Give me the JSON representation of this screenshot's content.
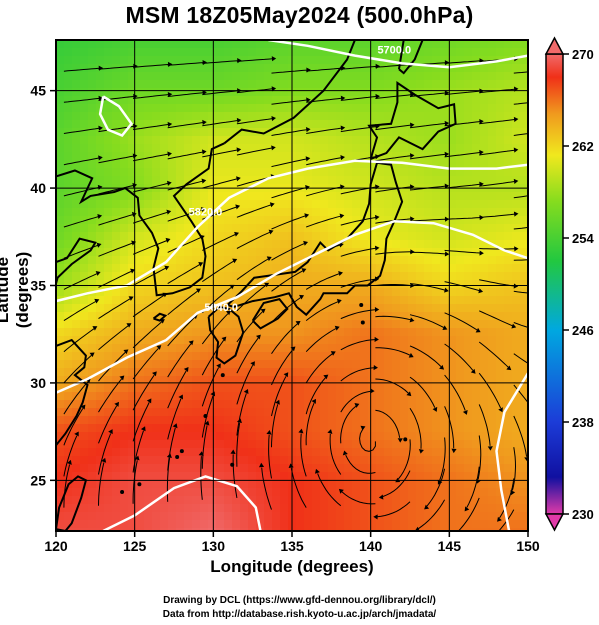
{
  "title": "MSM 18Z05May2024 (500.0hPa)",
  "axes": {
    "xlabel": "Longitude (degrees)",
    "ylabel": "Latitude  (degrees)",
    "x_ticks": [
      "120",
      "125",
      "130",
      "135",
      "140",
      "145",
      "150"
    ],
    "y_ticks": [
      "25",
      "30",
      "35",
      "40",
      "45"
    ],
    "x_range": [
      120,
      150
    ],
    "y_range": [
      22.4,
      47.6
    ]
  },
  "colorbar": {
    "min": 230,
    "max": 270,
    "ticks": [
      "270",
      "262",
      "254",
      "246",
      "238",
      "230"
    ],
    "colors": [
      "#e03aa8",
      "#1010a0",
      "#1c3cd8",
      "#00a8e0",
      "#22c840",
      "#86dc1e",
      "#f0e81e",
      "#f09a1e",
      "#f03018",
      "#f06a6a"
    ]
  },
  "contour_labels": [
    "5700.0",
    "5820.0",
    "5640.0"
  ],
  "credits": {
    "line1": "Drawing by DCL (https://www.gfd-dennou.org/library/dcl/)",
    "line2": "Data from http://database.rish.kyoto-u.ac.jp/arch/jmadata/"
  },
  "chart_data": {
    "type": "heatmap",
    "title": "MSM 18Z05May2024 (500.0hPa)",
    "xlabel": "Longitude (degrees)",
    "ylabel": "Latitude  (degrees)",
    "xlim": [
      120,
      150
    ],
    "ylim": [
      22.4,
      47.6
    ],
    "colorbar_range": [
      230,
      270
    ],
    "temperature_field": {
      "lon": [
        120,
        125,
        130,
        135,
        140,
        145,
        150
      ],
      "lat": [
        47.6,
        45,
        42.5,
        40,
        37.5,
        35,
        32.5,
        30,
        27.5,
        25,
        22.4
      ],
      "values": [
        [
          253,
          254,
          254,
          255,
          255,
          256,
          257
        ],
        [
          254,
          256,
          256,
          257,
          257,
          258,
          259
        ],
        [
          255,
          258,
          260,
          260,
          259,
          258,
          260
        ],
        [
          255,
          257,
          261,
          261,
          260,
          259,
          259
        ],
        [
          256,
          260,
          262,
          263,
          261,
          260,
          261
        ],
        [
          258,
          262,
          263,
          264,
          264,
          262,
          263
        ],
        [
          262,
          264,
          265,
          265,
          266,
          265,
          264
        ],
        [
          264,
          266,
          267,
          267,
          266,
          265,
          264
        ],
        [
          267,
          268,
          268,
          267,
          266,
          265,
          264
        ],
        [
          268,
          269,
          269,
          268,
          267,
          266,
          265
        ],
        [
          269,
          269,
          270,
          268,
          267,
          266,
          266
        ]
      ]
    }
  }
}
